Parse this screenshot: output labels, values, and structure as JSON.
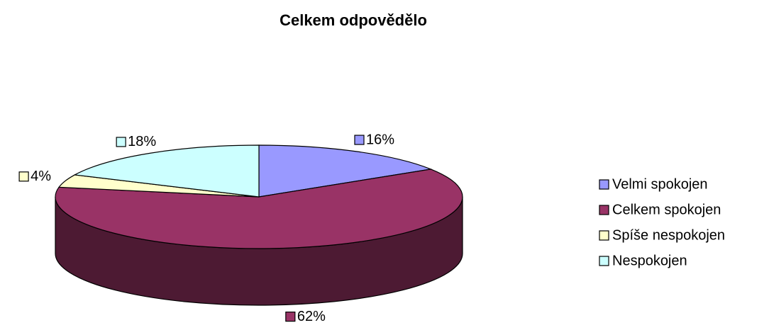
{
  "chart_data": {
    "type": "pie",
    "title": "Celkem odpovědělo",
    "categories": [
      "Velmi spokojen",
      "Celkem spokojen",
      "Spíše nespokojen",
      "Nespokojen"
    ],
    "values": [
      16,
      62,
      4,
      18
    ],
    "value_labels": [
      "16%",
      "62%",
      "4%",
      "18%"
    ],
    "colors": [
      "#9999ff",
      "#993366",
      "#ffffcc",
      "#ccffff"
    ],
    "legend": "right"
  }
}
